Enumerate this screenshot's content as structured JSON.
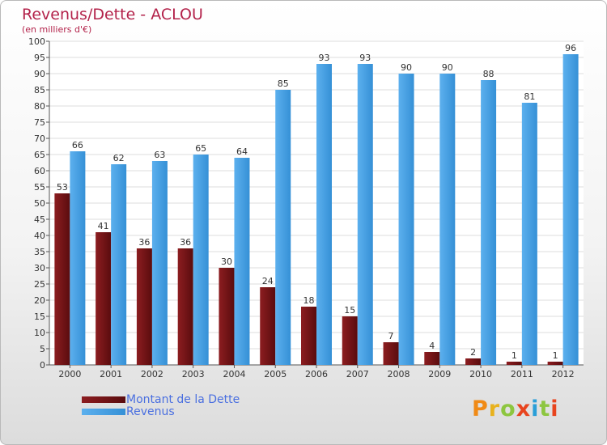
{
  "title": "Revenus/Dette - ACLOU",
  "subtitle": "(en milliers d'€)",
  "logo_text": "Proxiti",
  "chart_data": {
    "type": "bar",
    "categories": [
      "2000",
      "2001",
      "2002",
      "2003",
      "2004",
      "2005",
      "2006",
      "2007",
      "2008",
      "2009",
      "2010",
      "2011",
      "2012"
    ],
    "series": [
      {
        "name": "Montant de la Dette",
        "values": [
          53,
          41,
          36,
          36,
          30,
          24,
          18,
          15,
          7,
          4,
          2,
          1,
          1
        ],
        "color": "#7a1618"
      },
      {
        "name": "Revenus",
        "values": [
          66,
          62,
          63,
          65,
          64,
          85,
          93,
          93,
          90,
          90,
          88,
          81,
          96
        ],
        "color": "#4fa3e6"
      }
    ],
    "ylim": [
      0,
      100
    ],
    "ytick_step": 5,
    "grid": true,
    "legend_position": "bottom-left"
  },
  "colors": {
    "title": "#b3224a",
    "legend_text": "#4a6fe0",
    "logo_letters": [
      "#f08a16",
      "#e8b21e",
      "#8dc63f",
      "#e8441e",
      "#2a9fd8",
      "#8dc63f",
      "#e8441e"
    ]
  }
}
